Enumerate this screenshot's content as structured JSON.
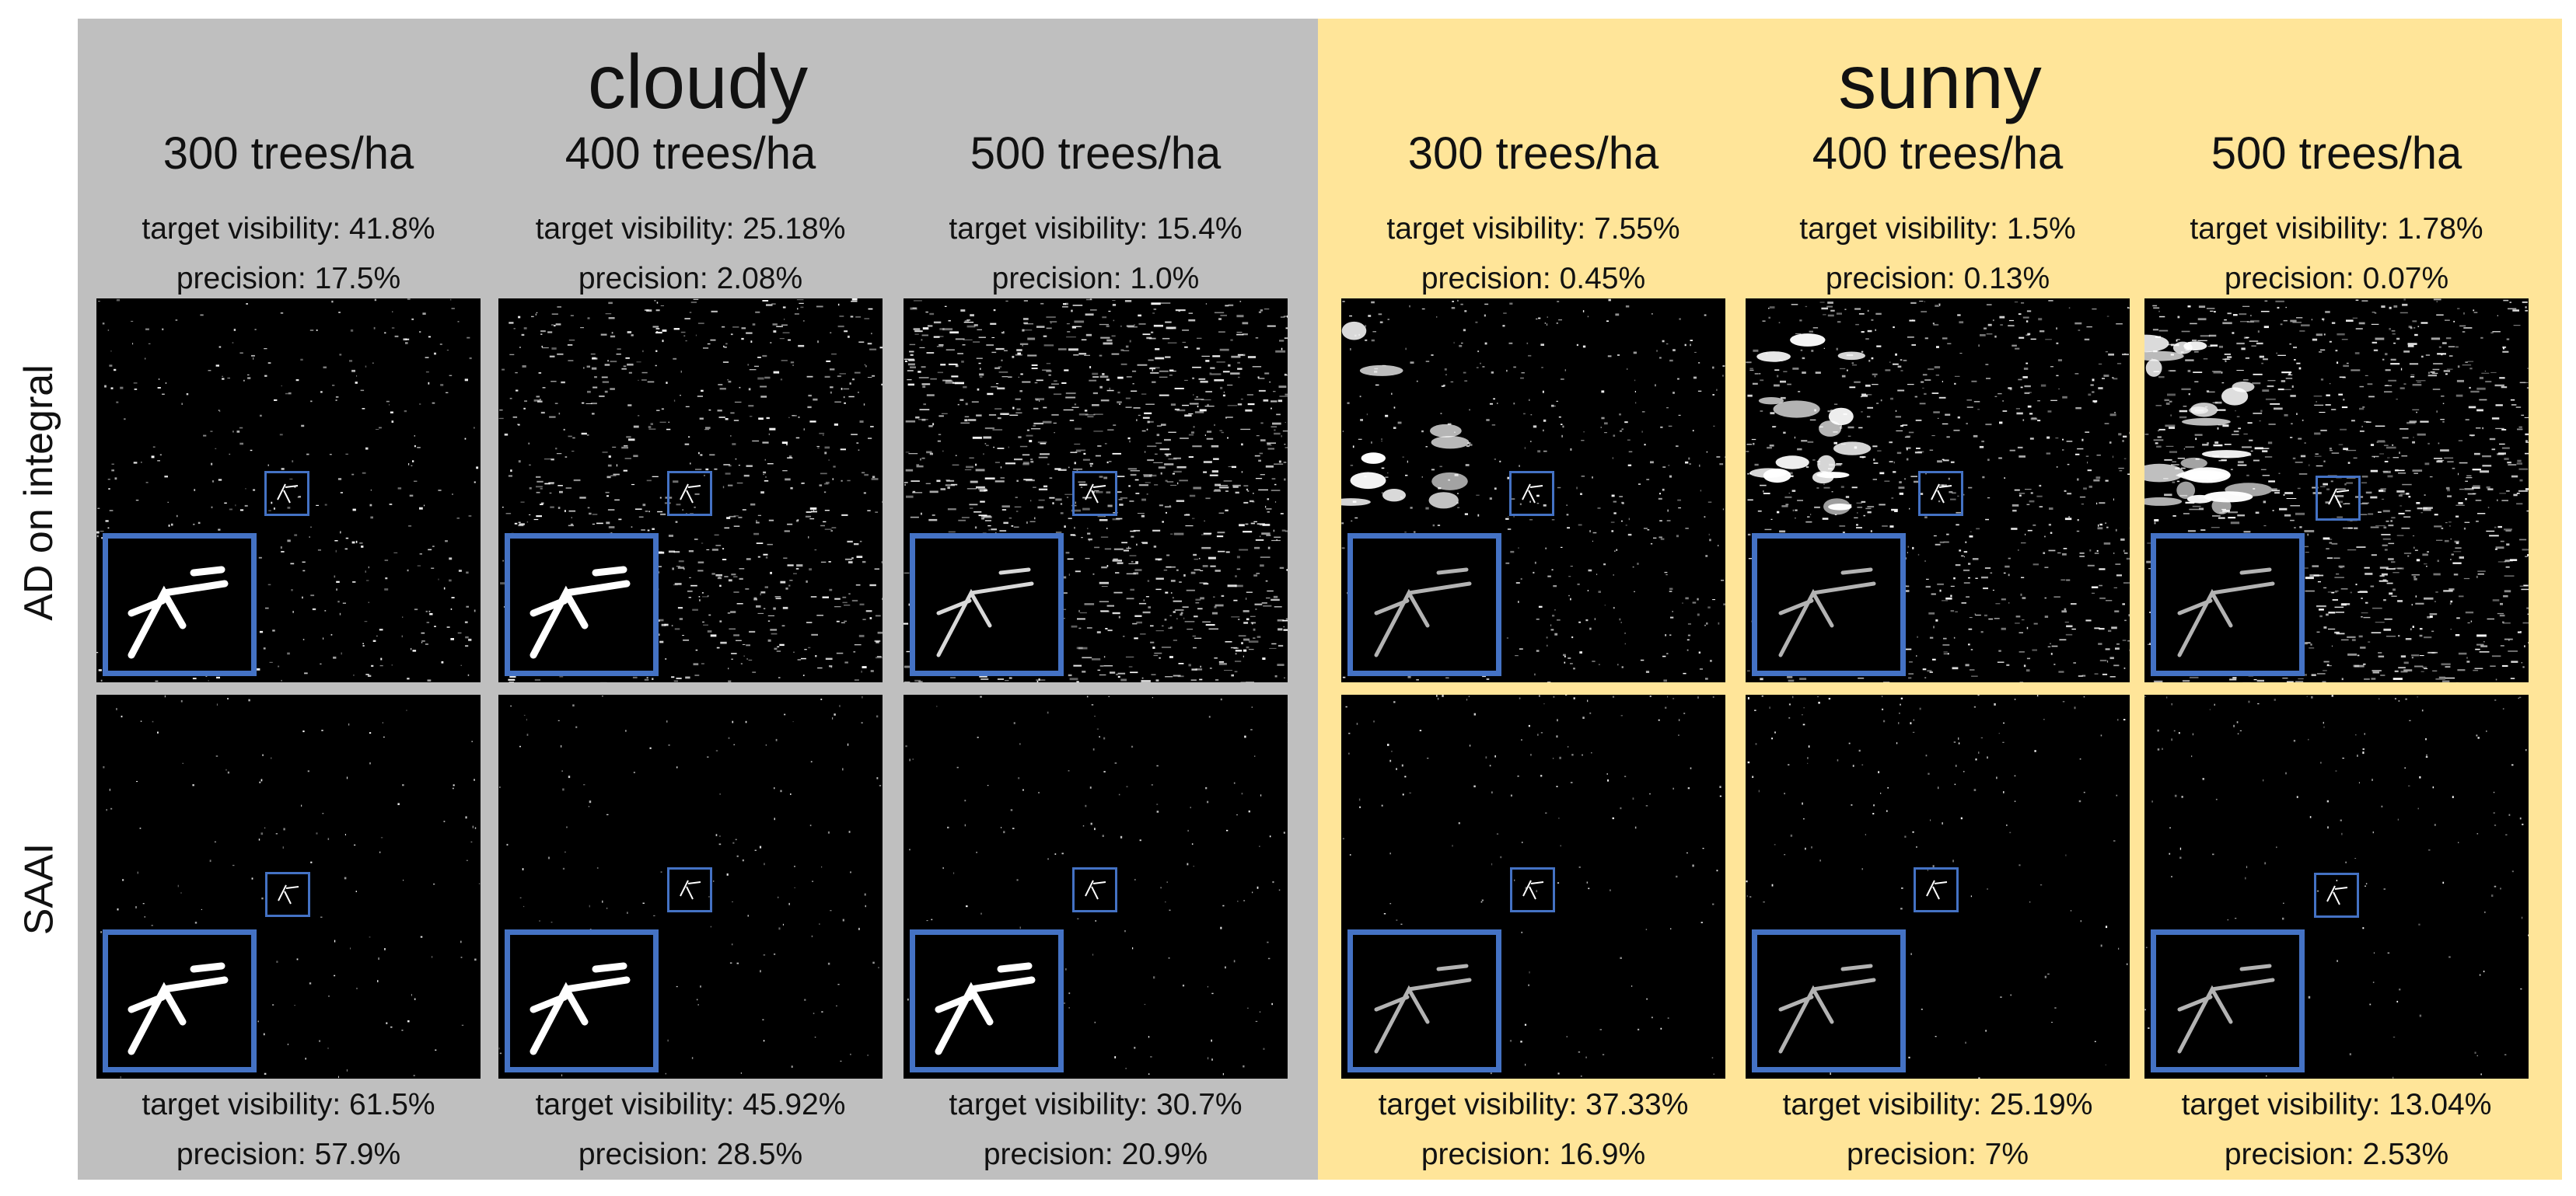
{
  "conditions": [
    {
      "title": "cloudy"
    },
    {
      "title": "sunny"
    }
  ],
  "rows": [
    {
      "label": "AD on integral"
    },
    {
      "label": "SAAI"
    }
  ],
  "columns": [
    {
      "density": "300 trees/ha",
      "top": {
        "visibility": "target visibility: 41.8%",
        "precision": "precision: 17.5%"
      },
      "bottom": {
        "visibility": "target visibility: 61.5%",
        "precision": "precision: 57.9%"
      }
    },
    {
      "density": "400 trees/ha",
      "top": {
        "visibility": "target visibility: 25.18%",
        "precision": "precision: 2.08%"
      },
      "bottom": {
        "visibility": "target visibility: 45.92%",
        "precision": "precision: 28.5%"
      }
    },
    {
      "density": "500 trees/ha",
      "top": {
        "visibility": "target visibility: 15.4%",
        "precision": "precision: 1.0%"
      },
      "bottom": {
        "visibility": "target visibility: 30.7%",
        "precision": "precision: 20.9%"
      }
    },
    {
      "density": "300 trees/ha",
      "top": {
        "visibility": "target visibility: 7.55%",
        "precision": "precision: 0.45%"
      },
      "bottom": {
        "visibility": "target visibility: 37.33%",
        "precision": "precision: 16.9%"
      }
    },
    {
      "density": "400 trees/ha",
      "top": {
        "visibility": "target visibility: 1.5%",
        "precision": "precision: 0.13%"
      },
      "bottom": {
        "visibility": "target visibility: 25.19%",
        "precision": "precision: 7%"
      }
    },
    {
      "density": "500 trees/ha",
      "top": {
        "visibility": "target visibility: 1.78%",
        "precision": "precision: 0.07%"
      },
      "bottom": {
        "visibility": "target visibility: 13.04%",
        "precision": "precision: 2.53%"
      }
    }
  ],
  "colors": {
    "cloudy_bg": "#bfbfbf",
    "sunny_bg": "#ffe599",
    "box": "#4472c4"
  }
}
